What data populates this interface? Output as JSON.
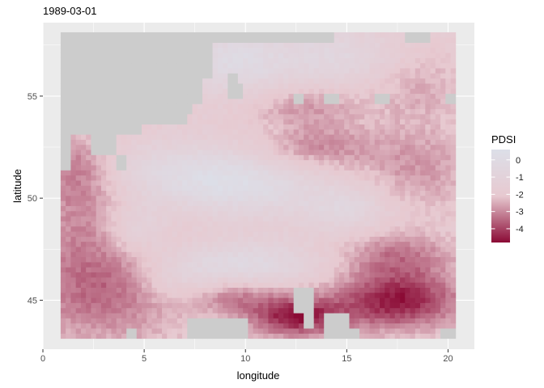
{
  "chart_data": {
    "type": "heatmap",
    "title": "1989-03-01",
    "xlabel": "longitude",
    "ylabel": "latitude",
    "xlim": [
      0,
      21.3
    ],
    "ylim": [
      42.6,
      58.6
    ],
    "x_ticks": [
      0,
      5,
      10,
      15,
      20
    ],
    "x_tick_labels": [
      "0",
      "5",
      "10",
      "15",
      "20"
    ],
    "y_ticks": [
      45,
      50,
      55
    ],
    "y_tick_labels": [
      "45",
      "50",
      "55"
    ],
    "grid": true,
    "panel_background": "#ebebeb",
    "missing_value_color": "#cccccc",
    "cell_size_deg": 0.25,
    "extent": {
      "lon": [
        0.875,
        20.375
      ],
      "lat": [
        43.125,
        58.125
      ]
    },
    "legend": {
      "title": "PDSI",
      "placement": "right",
      "breaks": [
        0,
        -1,
        -2,
        -3,
        -4
      ],
      "labels": [
        "0",
        "-1",
        "-2",
        "-3",
        "-4"
      ],
      "range": [
        -4.8,
        0.6
      ],
      "low_color": "#8b0a35",
      "mid_color": "#e7c9d0",
      "high_color": "#dcdfe8"
    },
    "missing_regions": [
      {
        "lon": [
          0.875,
          7.375
        ],
        "lat": [
          54.125,
          58.125
        ]
      },
      {
        "lon": [
          0.875,
          2.875
        ],
        "lat": [
          53.125,
          54.125
        ]
      },
      {
        "lon": [
          0.875,
          1.375
        ],
        "lat": [
          51.375,
          53.125
        ]
      },
      {
        "lon": [
          2.125,
          7.125
        ],
        "lat": [
          53.625,
          54.125
        ]
      },
      {
        "lon": [
          2.125,
          4.875
        ],
        "lat": [
          53.125,
          53.625
        ]
      },
      {
        "lon": [
          2.375,
          3.625
        ],
        "lat": [
          52.125,
          53.125
        ]
      },
      {
        "lon": [
          3.625,
          4.125
        ],
        "lat": [
          51.375,
          52.125
        ]
      },
      {
        "lon": [
          7.375,
          8.375
        ],
        "lat": [
          55.875,
          58.125
        ]
      },
      {
        "lon": [
          7.375,
          7.875
        ],
        "lat": [
          54.625,
          55.875
        ]
      },
      {
        "lon": [
          8.375,
          14.375
        ],
        "lat": [
          57.625,
          58.125
        ]
      },
      {
        "lon": [
          17.875,
          19.125
        ],
        "lat": [
          57.625,
          58.125
        ]
      },
      {
        "lon": [
          9.125,
          9.625
        ],
        "lat": [
          55.625,
          56.125
        ]
      },
      {
        "lon": [
          9.125,
          9.875
        ],
        "lat": [
          54.875,
          55.625
        ]
      },
      {
        "lon": [
          12.375,
          12.875
        ],
        "lat": [
          54.625,
          55.125
        ]
      },
      {
        "lon": [
          13.875,
          14.625
        ],
        "lat": [
          54.625,
          55.125
        ]
      },
      {
        "lon": [
          16.375,
          17.125
        ],
        "lat": [
          54.625,
          55.125
        ]
      },
      {
        "lon": [
          19.875,
          20.375
        ],
        "lat": [
          54.625,
          55.125
        ]
      },
      {
        "lon": [
          7.125,
          10.125
        ],
        "lat": [
          43.125,
          44.125
        ]
      },
      {
        "lon": [
          4.125,
          4.625
        ],
        "lat": [
          43.125,
          43.625
        ]
      },
      {
        "lon": [
          12.375,
          13.375
        ],
        "lat": [
          44.375,
          45.625
        ]
      },
      {
        "lon": [
          12.875,
          13.375
        ],
        "lat": [
          43.625,
          44.375
        ]
      },
      {
        "lon": [
          13.875,
          15.125
        ],
        "lat": [
          43.125,
          44.375
        ]
      },
      {
        "lon": [
          15.125,
          15.625
        ],
        "lat": [
          43.125,
          43.625
        ]
      },
      {
        "lon": [
          19.625,
          20.375
        ],
        "lat": [
          43.125,
          43.625
        ]
      }
    ],
    "pdsi_field": {
      "baseline": -1.8,
      "components": [
        {
          "lon": 1.5,
          "lat": 51.5,
          "sd_lon": 1.4,
          "sd_lat": 1.2,
          "amp": -1.4
        },
        {
          "lon": 2.5,
          "lat": 49.0,
          "sd_lon": 2.0,
          "sd_lat": 1.5,
          "amp": -1.0
        },
        {
          "lon": 3.0,
          "lat": 45.5,
          "sd_lon": 3.0,
          "sd_lat": 1.8,
          "amp": -1.7
        },
        {
          "lon": 4.5,
          "lat": 48.5,
          "sd_lon": 1.2,
          "sd_lat": 0.9,
          "amp": 1.3
        },
        {
          "lon": 7.0,
          "lat": 51.2,
          "sd_lon": 3.0,
          "sd_lat": 1.1,
          "amp": 1.5
        },
        {
          "lon": 10.5,
          "lat": 50.5,
          "sd_lon": 2.5,
          "sd_lat": 1.0,
          "amp": 1.3
        },
        {
          "lon": 9.5,
          "lat": 56.8,
          "sd_lon": 2.0,
          "sd_lat": 1.2,
          "amp": 1.7
        },
        {
          "lon": 14.5,
          "lat": 57.0,
          "sd_lon": 2.0,
          "sd_lat": 1.0,
          "amp": 1.2
        },
        {
          "lon": 10.0,
          "lat": 46.8,
          "sd_lon": 2.5,
          "sd_lat": 0.8,
          "amp": 1.6
        },
        {
          "lon": 6.5,
          "lat": 46.0,
          "sd_lon": 1.5,
          "sd_lat": 0.9,
          "amp": 1.0
        },
        {
          "lon": 15.0,
          "lat": 49.5,
          "sd_lon": 1.5,
          "sd_lat": 0.8,
          "amp": 1.2
        },
        {
          "lon": 13.0,
          "lat": 54.5,
          "sd_lon": 2.0,
          "sd_lat": 0.7,
          "amp": -1.0
        },
        {
          "lon": 13.5,
          "lat": 52.5,
          "sd_lon": 2.0,
          "sd_lat": 0.8,
          "amp": -1.2
        },
        {
          "lon": 12.5,
          "lat": 44.2,
          "sd_lon": 1.6,
          "sd_lat": 0.7,
          "amp": -2.8
        },
        {
          "lon": 17.5,
          "lat": 45.0,
          "sd_lon": 2.2,
          "sd_lat": 1.0,
          "amp": -2.8
        },
        {
          "lon": 9.5,
          "lat": 45.2,
          "sd_lon": 1.5,
          "sd_lat": 0.6,
          "amp": -1.3
        },
        {
          "lon": 17.5,
          "lat": 47.2,
          "sd_lon": 2.0,
          "sd_lat": 0.8,
          "amp": -1.4
        },
        {
          "lon": 18.5,
          "lat": 51.5,
          "sd_lon": 2.0,
          "sd_lat": 1.5,
          "amp": -1.0
        },
        {
          "lon": 18.5,
          "lat": 55.5,
          "sd_lon": 1.5,
          "sd_lat": 1.2,
          "amp": -0.7
        }
      ]
    }
  }
}
